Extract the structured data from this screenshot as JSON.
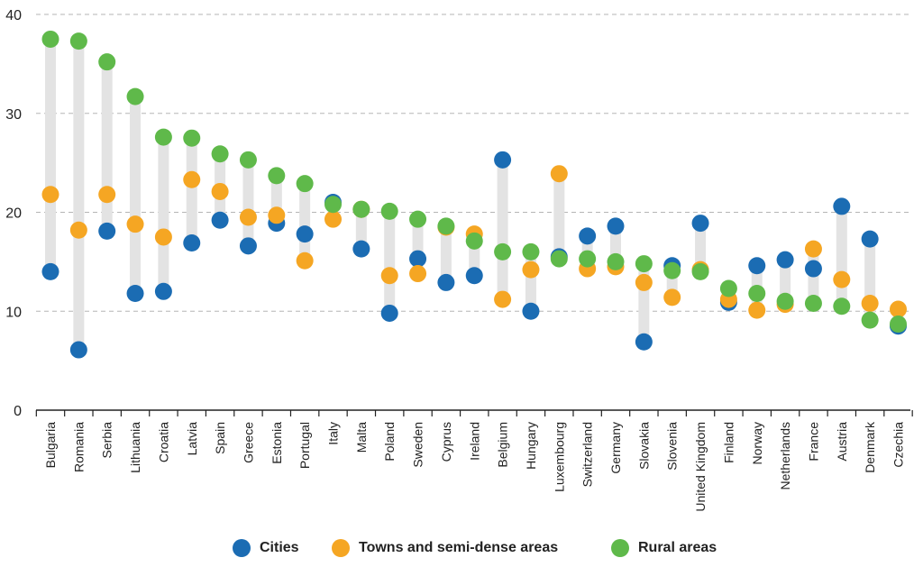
{
  "chart_data": {
    "type": "scatter",
    "categories": [
      "Bulgaria",
      "Romania",
      "Serbia",
      "Lithuania",
      "Croatia",
      "Latvia",
      "Spain",
      "Greece",
      "Estonia",
      "Portugal",
      "Italy",
      "Malta",
      "Poland",
      "Sweden",
      "Cyprus",
      "Ireland",
      "Belgium",
      "Hungary",
      "Luxembourg",
      "Switzerland",
      "Germany",
      "Slovakia",
      "Slovenia",
      "United Kingdom",
      "Finland",
      "Norway",
      "Netherlands",
      "France",
      "Austria",
      "Denmark",
      "Czechia"
    ],
    "series": [
      {
        "name": "Cities",
        "color": "#1b6cb3",
        "values": [
          14.0,
          6.1,
          18.1,
          11.8,
          12.0,
          16.9,
          19.2,
          16.6,
          18.9,
          17.8,
          21.0,
          16.3,
          9.8,
          15.3,
          12.9,
          13.6,
          25.3,
          10.0,
          15.5,
          17.6,
          18.6,
          6.9,
          14.6,
          18.9,
          10.9,
          14.6,
          15.2,
          14.3,
          20.6,
          17.3,
          8.5
        ]
      },
      {
        "name": "Towns and semi-dense areas",
        "color": "#f5a623",
        "values": [
          21.8,
          18.2,
          21.8,
          18.8,
          17.5,
          23.3,
          22.1,
          19.5,
          19.7,
          15.1,
          19.3,
          20.3,
          13.6,
          13.8,
          18.5,
          17.8,
          11.2,
          14.2,
          23.9,
          14.3,
          14.5,
          12.9,
          11.4,
          14.2,
          11.2,
          10.1,
          10.7,
          16.3,
          13.2,
          10.8,
          10.2
        ]
      },
      {
        "name": "Rural areas",
        "color": "#5fb94a",
        "values": [
          37.5,
          37.3,
          35.2,
          31.7,
          27.6,
          27.5,
          25.9,
          25.3,
          23.7,
          22.9,
          20.8,
          20.3,
          20.1,
          19.3,
          18.6,
          17.1,
          16.0,
          16.0,
          15.3,
          15.3,
          15.0,
          14.8,
          14.1,
          14.0,
          12.3,
          11.8,
          11.0,
          10.8,
          10.5,
          9.1,
          8.7
        ]
      }
    ],
    "y_ticks": [
      "0",
      "10",
      "20",
      "30",
      "40"
    ],
    "ylim": [
      0,
      40
    ],
    "grid": "horizontal dashed",
    "legend_position": "bottom"
  }
}
